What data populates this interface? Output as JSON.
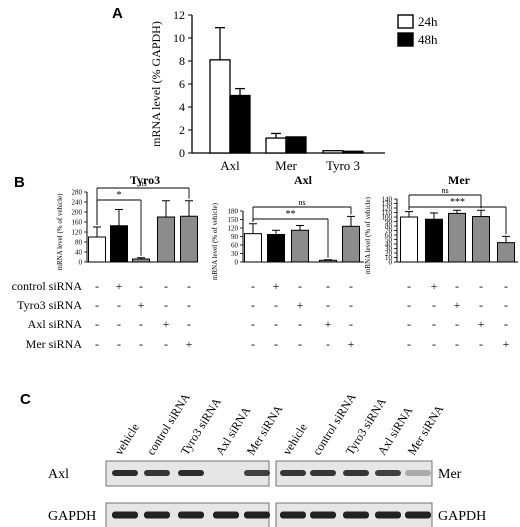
{
  "colors": {
    "open": "#ffffff",
    "black": "#000000",
    "grey": "#8c8c8c",
    "blot_bg": "#e6e6e6",
    "band": "#222222"
  },
  "panels": {
    "a": "A",
    "b": "B",
    "c": "C"
  },
  "chart_data": [
    {
      "type": "bar",
      "panel": "A",
      "title": "",
      "xlabel": "",
      "ylabel": "mRNA level (% GAPDH)",
      "ylim": [
        0,
        12
      ],
      "yticks": [
        0,
        2,
        4,
        6,
        8,
        10,
        12
      ],
      "categories": [
        "Axl",
        "Mer",
        "Tyro 3"
      ],
      "series": [
        {
          "name": "24h",
          "color": "#ffffff",
          "values": [
            8.1,
            1.3,
            0.2
          ],
          "errors": [
            2.8,
            0.4,
            0.0
          ]
        },
        {
          "name": "48h",
          "color": "#000000",
          "values": [
            5.0,
            1.4,
            0.15
          ],
          "errors": [
            0.6,
            0.0,
            0.0
          ]
        }
      ],
      "legend": "top-right"
    },
    {
      "type": "bar",
      "panel": "B",
      "title": "Tyro3",
      "ylabel": "mRNA level (% of vehicle)",
      "ylim": [
        0,
        280
      ],
      "yticks": [
        0,
        40,
        80,
        120,
        160,
        200,
        240,
        280
      ],
      "values": [
        100,
        145,
        12,
        180,
        183
      ],
      "errors": [
        40,
        65,
        5,
        65,
        62
      ],
      "colors": [
        "#ffffff",
        "#000000",
        "#8c8c8c",
        "#8c8c8c",
        "#8c8c8c"
      ],
      "significance": [
        {
          "from": 0,
          "to": 2,
          "label": "*"
        },
        {
          "from": 0,
          "to": 4,
          "label": "ns"
        }
      ]
    },
    {
      "type": "bar",
      "panel": "B",
      "title": "Axl",
      "ylabel": "mRNA level (% of vehicle)",
      "ylim": [
        0,
        180
      ],
      "yticks": [
        0,
        30,
        60,
        90,
        120,
        150,
        180
      ],
      "values": [
        100,
        97,
        112,
        6,
        126
      ],
      "errors": [
        35,
        15,
        17,
        2,
        35
      ],
      "colors": [
        "#ffffff",
        "#000000",
        "#8c8c8c",
        "#8c8c8c",
        "#8c8c8c"
      ],
      "significance": [
        {
          "from": 0,
          "to": 3,
          "label": "**"
        },
        {
          "from": 0,
          "to": 4,
          "label": "ns"
        }
      ]
    },
    {
      "type": "bar",
      "panel": "B",
      "title": "Mer",
      "ylabel": "mRNA level (% of vehicle)",
      "ylim": [
        0,
        140
      ],
      "yticks": [
        0,
        10,
        20,
        30,
        40,
        50,
        60,
        70,
        80,
        90,
        100,
        110,
        120,
        130,
        140
      ],
      "values": [
        100,
        95,
        108,
        101,
        43
      ],
      "errors": [
        12,
        14,
        7,
        14,
        14
      ],
      "colors": [
        "#ffffff",
        "#000000",
        "#8c8c8c",
        "#8c8c8c",
        "#8c8c8c"
      ],
      "significance": [
        {
          "from": 0,
          "to": 4,
          "label": "***"
        },
        {
          "from": 0,
          "to": 3,
          "label": "ns"
        }
      ]
    }
  ],
  "treatments": {
    "rows": [
      {
        "label": "control siRNA",
        "marks": [
          "-",
          "+",
          "-",
          "-",
          "-"
        ]
      },
      {
        "label": "Tyro3 siRNA",
        "marks": [
          "-",
          "-",
          "+",
          "-",
          "-"
        ]
      },
      {
        "label": "Axl siRNA",
        "marks": [
          "-",
          "-",
          "-",
          "+",
          "-"
        ]
      },
      {
        "label": "Mer siRNA",
        "marks": [
          "-",
          "-",
          "-",
          "-",
          "+"
        ]
      }
    ]
  },
  "blot": {
    "lanes": [
      "vehicle",
      "control siRNA",
      "Tyro3 siRNA",
      "Axl siRNA",
      "Mer siRNA"
    ],
    "left": {
      "rows": [
        "Axl",
        "GAPDH"
      ],
      "intensities": [
        [
          0.95,
          0.9,
          0.95,
          0.0,
          0.85
        ],
        [
          1,
          1,
          1,
          1,
          1
        ]
      ]
    },
    "right": {
      "rows": [
        "Mer",
        "GAPDH"
      ],
      "intensities": [
        [
          0.9,
          0.9,
          0.9,
          0.85,
          0.3
        ],
        [
          1,
          1,
          1,
          1,
          1
        ]
      ]
    }
  }
}
